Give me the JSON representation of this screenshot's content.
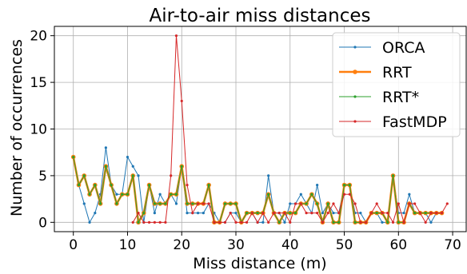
{
  "chart_data": {
    "type": "line",
    "title": "Air-to-air miss distances",
    "xlabel": "Miss distance (m)",
    "ylabel": "Number of occurrences",
    "xlim": [
      -3.5,
      72.5
    ],
    "ylim": [
      -1,
      21
    ],
    "xticks": [
      0,
      10,
      20,
      30,
      40,
      50,
      60,
      70
    ],
    "yticks": [
      0,
      5,
      10,
      15,
      20
    ],
    "grid": true,
    "legend_position": "top-right",
    "series": [
      {
        "name": "ORCA",
        "color": "#1f77b4",
        "linewidth": 1,
        "marker_size": 1.6,
        "x": [
          0,
          1,
          2,
          3,
          4,
          5,
          6,
          7,
          8,
          9,
          10,
          11,
          12,
          13,
          14,
          15,
          16,
          17,
          18,
          19,
          20,
          21,
          22,
          23,
          24,
          25,
          26,
          27,
          28,
          29,
          30,
          31,
          32,
          33,
          34,
          35,
          36,
          37,
          38,
          39,
          40,
          41,
          42,
          43,
          44,
          45,
          46,
          47,
          48,
          49,
          50,
          51,
          52,
          53,
          54,
          55,
          56,
          57,
          58,
          59,
          60,
          61,
          62,
          63,
          64,
          65,
          66,
          67,
          68
        ],
        "y": [
          7,
          4,
          2,
          0,
          1,
          3,
          8,
          4,
          3,
          3,
          7,
          6,
          5,
          0,
          4,
          1,
          3,
          2,
          3,
          2,
          6,
          1,
          1,
          1,
          1,
          2,
          1,
          0,
          0,
          1,
          1,
          0,
          1,
          1,
          0,
          0,
          5,
          1,
          1,
          0,
          2,
          2,
          3,
          2,
          1,
          4,
          1,
          2,
          1,
          1,
          4,
          4,
          1,
          1,
          0,
          1,
          1,
          0,
          0,
          5,
          1,
          1,
          3,
          1,
          1,
          1,
          0,
          1,
          1
        ]
      },
      {
        "name": "RRT",
        "color": "#ff7f0e",
        "linewidth": 2.6,
        "marker_size": 2.8,
        "x": [
          0,
          1,
          2,
          3,
          4,
          5,
          6,
          7,
          8,
          9,
          10,
          11,
          12,
          13,
          14,
          15,
          16,
          17,
          18,
          19,
          20,
          21,
          22,
          23,
          24,
          25,
          26,
          27,
          28,
          29,
          30,
          31,
          32,
          33,
          34,
          35,
          36,
          37,
          38,
          39,
          40,
          41,
          42,
          43,
          44,
          45,
          46,
          47,
          48,
          49,
          50,
          51,
          52,
          53,
          54,
          55,
          56,
          57,
          58,
          59,
          60,
          61,
          62,
          63,
          64,
          65,
          66,
          67,
          68
        ],
        "y": [
          7,
          4,
          5,
          3,
          4,
          2,
          6,
          4,
          2,
          3,
          3,
          5,
          0,
          1,
          4,
          2,
          2,
          2,
          3,
          3,
          6,
          2,
          2,
          2,
          2,
          4,
          0,
          0,
          2,
          2,
          2,
          0,
          1,
          1,
          1,
          1,
          3,
          1,
          0,
          1,
          1,
          1,
          2,
          2,
          3,
          2,
          0,
          2,
          0,
          0,
          4,
          4,
          0,
          0,
          0,
          1,
          1,
          1,
          0,
          5,
          0,
          0,
          2,
          1,
          1,
          1,
          1,
          1,
          1
        ]
      },
      {
        "name": "RRT*",
        "color": "#2ca02c",
        "linewidth": 1,
        "marker_size": 1.6,
        "x": [
          0,
          1,
          2,
          3,
          4,
          5,
          6,
          7,
          8,
          9,
          10,
          11,
          12,
          13,
          14,
          15,
          16,
          17,
          18,
          19,
          20,
          21,
          22,
          23,
          24,
          25,
          26,
          27,
          28,
          29,
          30,
          31,
          32,
          33,
          34,
          35,
          36,
          37,
          38,
          39,
          40,
          41,
          42,
          43,
          44,
          45,
          46,
          47,
          48,
          49,
          50,
          51,
          52,
          53,
          54,
          55,
          56,
          57,
          58,
          59,
          60,
          61,
          62,
          63,
          64,
          65,
          66,
          67,
          68
        ],
        "y": [
          7,
          4,
          5,
          3,
          4,
          2,
          6,
          4,
          2,
          3,
          3,
          5,
          0,
          1,
          4,
          2,
          2,
          2,
          3,
          3,
          6,
          2,
          2,
          2,
          2,
          4,
          0,
          0,
          2,
          2,
          2,
          0,
          1,
          1,
          1,
          1,
          3,
          1,
          0,
          1,
          1,
          1,
          2,
          2,
          3,
          2,
          0,
          2,
          0,
          0,
          4,
          4,
          0,
          0,
          0,
          1,
          1,
          1,
          0,
          5,
          0,
          0,
          2,
          1,
          1,
          1,
          1,
          1,
          1
        ]
      },
      {
        "name": "FastMDP",
        "color": "#d62728",
        "linewidth": 1,
        "marker_size": 1.6,
        "x": [
          11,
          12,
          13,
          14,
          15,
          16,
          17,
          18,
          19,
          20,
          21,
          22,
          23,
          24,
          25,
          26,
          27,
          28,
          29,
          30,
          31,
          32,
          33,
          34,
          35,
          36,
          37,
          38,
          39,
          40,
          41,
          42,
          43,
          44,
          45,
          46,
          47,
          48,
          49,
          50,
          51,
          52,
          53,
          54,
          55,
          56,
          57,
          58,
          59,
          60,
          61,
          62,
          63,
          64,
          65,
          66,
          67,
          68,
          69
        ],
        "y": [
          0,
          1,
          0,
          0,
          0,
          0,
          0,
          5,
          20,
          13,
          4,
          1,
          2,
          2,
          2,
          0,
          0,
          0,
          1,
          0,
          0,
          0,
          1,
          0,
          1,
          0,
          1,
          1,
          1,
          0,
          2,
          2,
          1,
          1,
          1,
          0,
          1,
          2,
          1,
          3,
          3,
          2,
          0,
          0,
          1,
          2,
          1,
          1,
          0,
          2,
          0,
          2,
          2,
          1,
          0,
          1,
          1,
          1,
          2
        ]
      }
    ]
  }
}
